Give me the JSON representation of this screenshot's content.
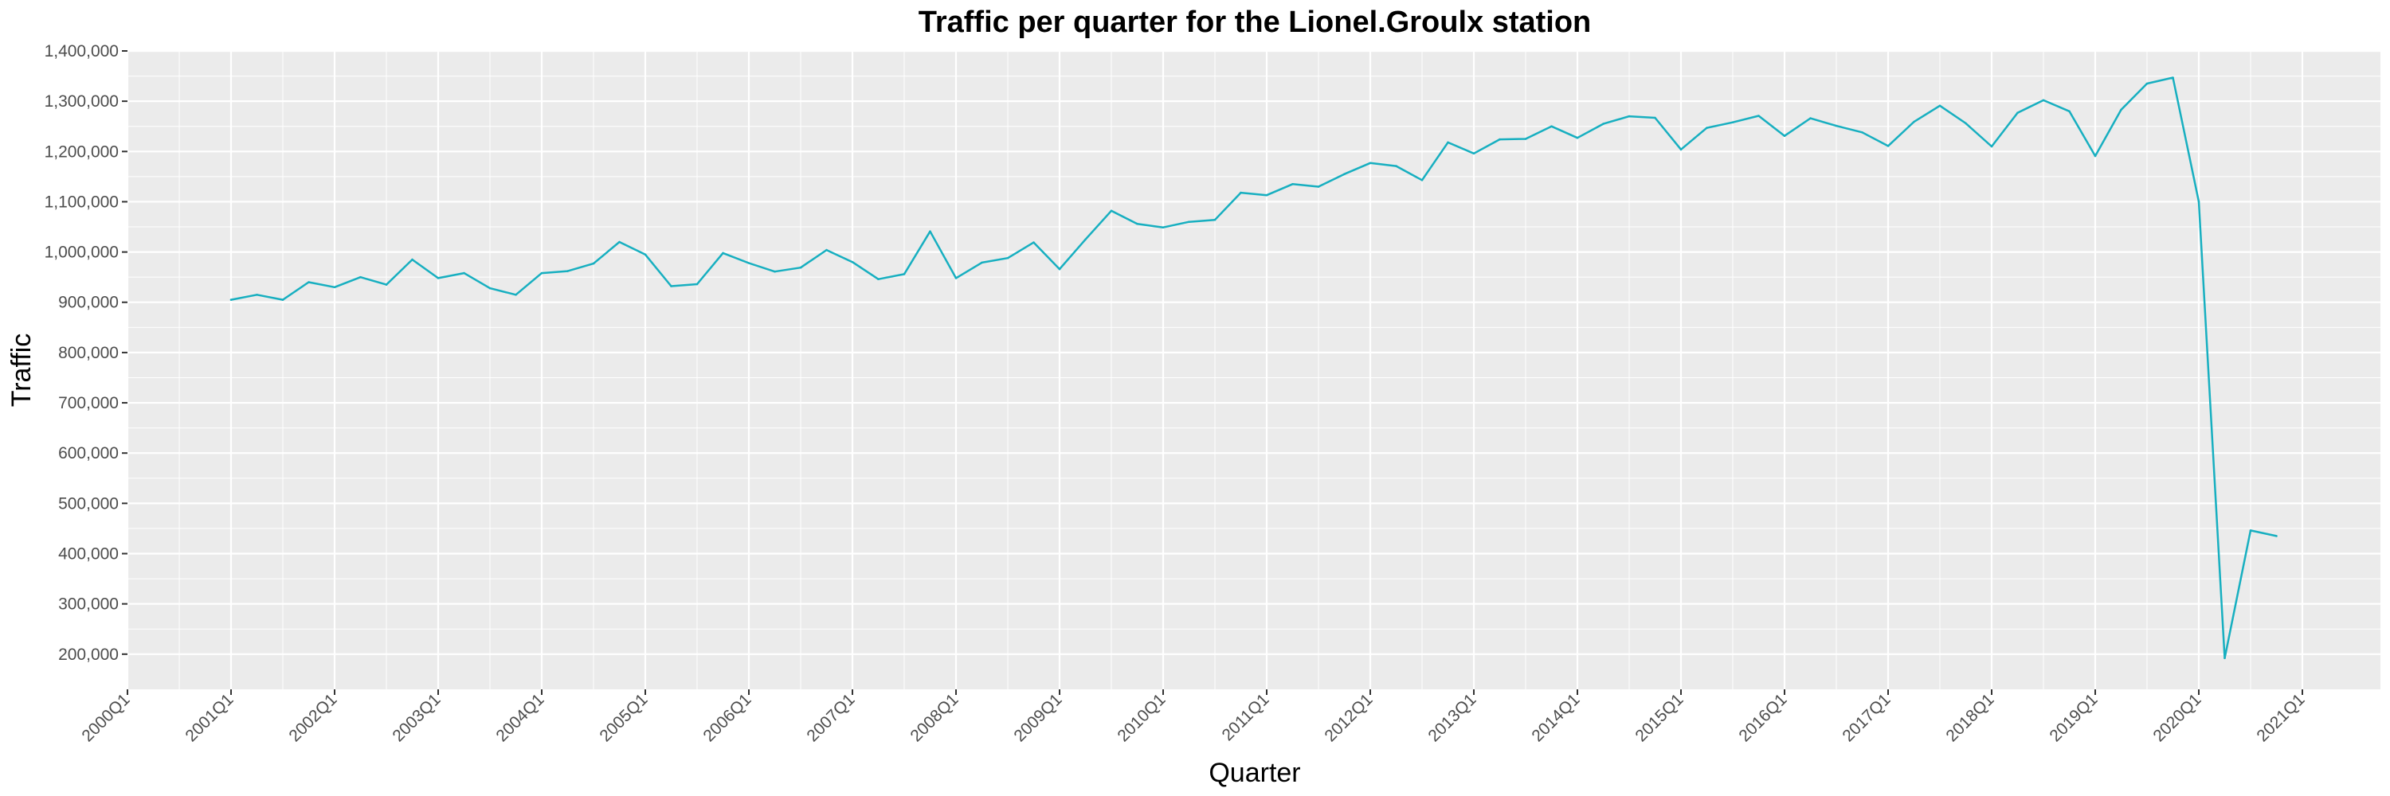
{
  "chart_data": {
    "type": "line",
    "title": "Traffic per quarter for the Lionel.Groulx station",
    "xlabel": "Quarter",
    "ylabel": "Traffic",
    "ylim": [
      130000,
      1400000
    ],
    "grid": true,
    "legend": "none",
    "colors": {
      "line": "#17AFC0",
      "panel": "#EBEBEB",
      "grid": "#FFFFFF"
    },
    "x_ticks": [
      "2000Q1",
      "2001Q1",
      "2002Q1",
      "2003Q1",
      "2004Q1",
      "2005Q1",
      "2006Q1",
      "2007Q1",
      "2008Q1",
      "2009Q1",
      "2010Q1",
      "2011Q1",
      "2012Q1",
      "2013Q1",
      "2014Q1",
      "2015Q1",
      "2016Q1",
      "2017Q1",
      "2018Q1",
      "2019Q1",
      "2020Q1",
      "2021Q1"
    ],
    "y_ticks": [
      {
        "value": 200000,
        "label": "200,000"
      },
      {
        "value": 300000,
        "label": "300,000"
      },
      {
        "value": 400000,
        "label": "400,000"
      },
      {
        "value": 500000,
        "label": "500,000"
      },
      {
        "value": 600000,
        "label": "600,000"
      },
      {
        "value": 700000,
        "label": "700,000"
      },
      {
        "value": 800000,
        "label": "800,000"
      },
      {
        "value": 900000,
        "label": "900,000"
      },
      {
        "value": 1000000,
        "label": "1,000,000"
      },
      {
        "value": 1100000,
        "label": "1,100,000"
      },
      {
        "value": 1200000,
        "label": "1,200,000"
      },
      {
        "value": 1300000,
        "label": "1,300,000"
      },
      {
        "value": 1400000,
        "label": "1,400,000"
      }
    ],
    "series": [
      {
        "x": [
          "2001Q1",
          "2001Q2",
          "2001Q3",
          "2001Q4",
          "2002Q1",
          "2002Q2",
          "2002Q3",
          "2002Q4",
          "2003Q1",
          "2003Q2",
          "2003Q3",
          "2003Q4",
          "2004Q1",
          "2004Q2",
          "2004Q3",
          "2004Q4",
          "2005Q1",
          "2005Q2",
          "2005Q3",
          "2005Q4",
          "2006Q1",
          "2006Q2",
          "2006Q3",
          "2006Q4",
          "2007Q1",
          "2007Q2",
          "2007Q3",
          "2007Q4",
          "2008Q1",
          "2008Q2",
          "2008Q3",
          "2008Q4",
          "2009Q1",
          "2009Q2",
          "2009Q3",
          "2009Q4",
          "2010Q1",
          "2010Q2",
          "2010Q3",
          "2010Q4",
          "2011Q1",
          "2011Q2",
          "2011Q3",
          "2011Q4",
          "2012Q1",
          "2012Q2",
          "2012Q3",
          "2012Q4",
          "2013Q1",
          "2013Q2",
          "2013Q3",
          "2013Q4",
          "2014Q1",
          "2014Q2",
          "2014Q3",
          "2014Q4",
          "2015Q1",
          "2015Q2",
          "2015Q3",
          "2015Q4",
          "2016Q1",
          "2016Q2",
          "2016Q3",
          "2016Q4",
          "2017Q1",
          "2017Q2",
          "2017Q3",
          "2017Q4",
          "2018Q1",
          "2018Q2",
          "2018Q3",
          "2018Q4",
          "2019Q1",
          "2019Q2",
          "2019Q3",
          "2019Q4",
          "2020Q1",
          "2020Q2",
          "2020Q3",
          "2020Q4"
        ],
        "values": [
          905000,
          915000,
          905000,
          940000,
          930000,
          950000,
          935000,
          985000,
          948000,
          958000,
          928000,
          915000,
          958000,
          962000,
          977000,
          1020000,
          995000,
          932000,
          936000,
          998000,
          978000,
          961000,
          969000,
          1004000,
          980000,
          946000,
          956000,
          1041000,
          948000,
          979000,
          988000,
          1019000,
          966000,
          1025000,
          1082000,
          1056000,
          1049000,
          1060000,
          1064000,
          1118000,
          1113000,
          1135000,
          1130000,
          1155000,
          1177000,
          1171000,
          1143000,
          1218000,
          1196000,
          1224000,
          1225000,
          1250000,
          1227000,
          1255000,
          1270000,
          1267000,
          1204000,
          1247000,
          1258000,
          1271000,
          1231000,
          1266000,
          1251000,
          1238000,
          1211000,
          1259000,
          1291000,
          1256000,
          1210000,
          1277000,
          1302000,
          1280000,
          1191000,
          1283000,
          1335000,
          1347000,
          1100000,
          192000,
          446000,
          435000
        ]
      }
    ]
  }
}
